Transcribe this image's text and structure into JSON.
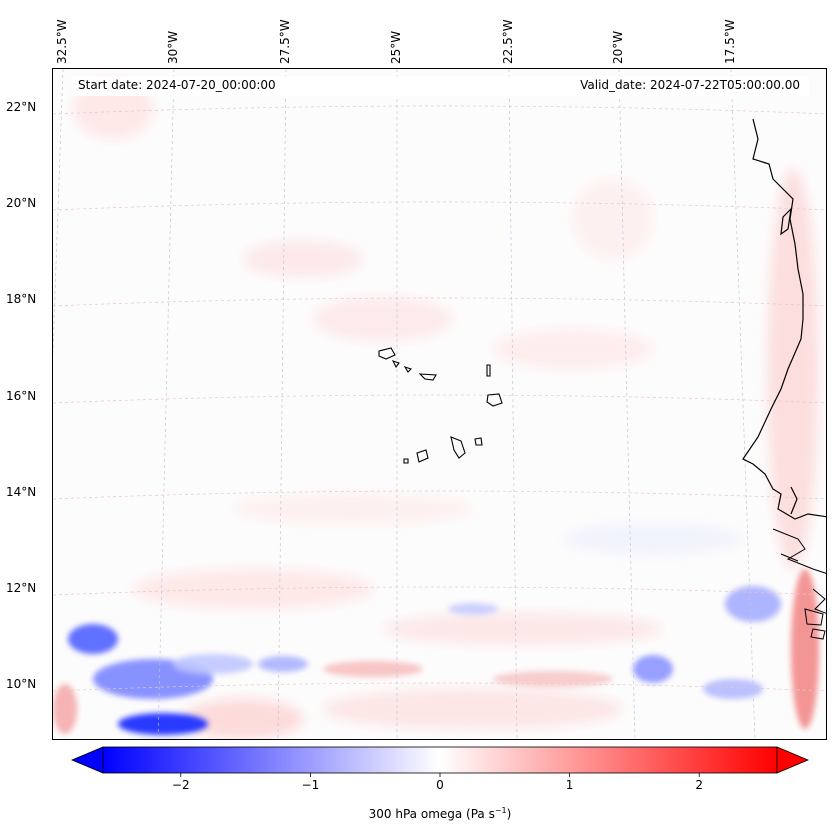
{
  "map": {
    "start_date": "Start date: 2024-07-20_00:00:00",
    "valid_date": "Valid_date: 2024-07-22T05:00:00.00",
    "lon_labels": [
      "32.5°W",
      "30°W",
      "27.5°W",
      "25°W",
      "22.5°W",
      "20°W",
      "17.5°W"
    ],
    "lat_labels": [
      "22°N",
      "20°N",
      "18°N",
      "16°N",
      "14°N",
      "12°N",
      "10°N"
    ],
    "lon_values": [
      -32.5,
      -30,
      -27.5,
      -25,
      -22.5,
      -20,
      -17.5
    ],
    "lat_values": [
      22,
      20,
      18,
      16,
      14,
      12,
      10
    ],
    "extent": {
      "lon_min": -32.6,
      "lon_max": -15.4,
      "lat_min": 8.85,
      "lat_max": 22.75
    }
  },
  "colorbar": {
    "label_main": "300 hPa omega (Pa s",
    "label_exp": "−1",
    "label_close": ")",
    "ticks": [
      "−2",
      "−1",
      "0",
      "1",
      "2"
    ],
    "tick_values": [
      -2,
      -1,
      0,
      1,
      2
    ],
    "vmin": -2.6,
    "vmax": 2.6,
    "cmap": [
      "#0000ff",
      "#ffffff",
      "#ff0000"
    ]
  },
  "colors": {
    "gridline_lon": "#bfc6de",
    "gridline_lat": "#e6c6c6",
    "coastline": "#000000",
    "background": "#fdfcfc"
  }
}
